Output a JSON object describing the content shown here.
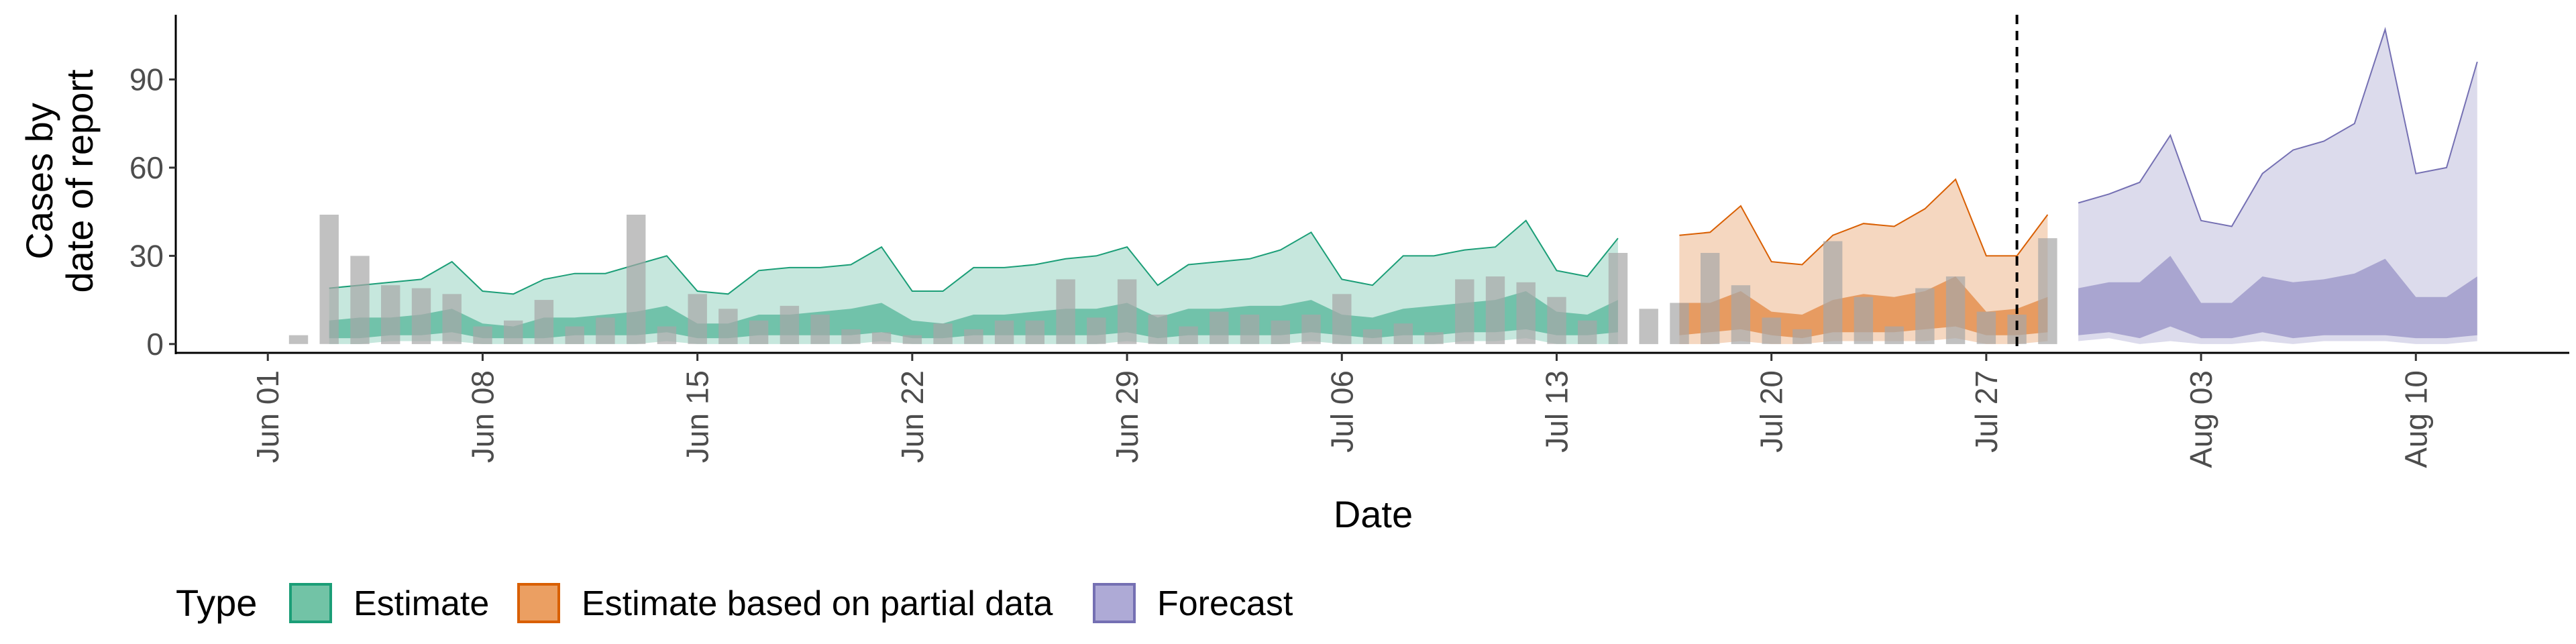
{
  "chart_data": {
    "type": "area",
    "xlabel": "Date",
    "ylabel_lines": [
      "Cases by",
      "date of report"
    ],
    "x_start": "2020-05-29",
    "x_end": "2020-08-15",
    "ylim": [
      -3,
      112
    ],
    "y_ticks": [
      0,
      30,
      60,
      90
    ],
    "x_ticks": [
      {
        "date": "2020-06-01",
        "label": "Jun 01"
      },
      {
        "date": "2020-06-08",
        "label": "Jun 08"
      },
      {
        "date": "2020-06-15",
        "label": "Jun 15"
      },
      {
        "date": "2020-06-22",
        "label": "Jun 22"
      },
      {
        "date": "2020-06-29",
        "label": "Jun 29"
      },
      {
        "date": "2020-07-06",
        "label": "Jul 06"
      },
      {
        "date": "2020-07-13",
        "label": "Jul 13"
      },
      {
        "date": "2020-07-20",
        "label": "Jul 20"
      },
      {
        "date": "2020-07-27",
        "label": "Jul 27"
      },
      {
        "date": "2020-08-03",
        "label": "Aug 03"
      },
      {
        "date": "2020-08-10",
        "label": "Aug 10"
      }
    ],
    "vline_date": "2020-07-28",
    "grid": false,
    "legend": {
      "position": "bottom",
      "title": "Type"
    },
    "colors": {
      "Estimate": "#1b9e77",
      "Estimate based on partial data": "#d95f02",
      "Forecast": "#7570b3",
      "bars": "#a6a6a6"
    },
    "bars": [
      {
        "date": "2020-06-02",
        "value": 3
      },
      {
        "date": "2020-06-03",
        "value": 44
      },
      {
        "date": "2020-06-04",
        "value": 30
      },
      {
        "date": "2020-06-05",
        "value": 20
      },
      {
        "date": "2020-06-06",
        "value": 19
      },
      {
        "date": "2020-06-07",
        "value": 17
      },
      {
        "date": "2020-06-08",
        "value": 6
      },
      {
        "date": "2020-06-09",
        "value": 8
      },
      {
        "date": "2020-06-10",
        "value": 15
      },
      {
        "date": "2020-06-11",
        "value": 6
      },
      {
        "date": "2020-06-12",
        "value": 9
      },
      {
        "date": "2020-06-13",
        "value": 44
      },
      {
        "date": "2020-06-14",
        "value": 6
      },
      {
        "date": "2020-06-15",
        "value": 17
      },
      {
        "date": "2020-06-16",
        "value": 12
      },
      {
        "date": "2020-06-17",
        "value": 8
      },
      {
        "date": "2020-06-18",
        "value": 13
      },
      {
        "date": "2020-06-19",
        "value": 10
      },
      {
        "date": "2020-06-20",
        "value": 5
      },
      {
        "date": "2020-06-21",
        "value": 4
      },
      {
        "date": "2020-06-22",
        "value": 3
      },
      {
        "date": "2020-06-23",
        "value": 7
      },
      {
        "date": "2020-06-24",
        "value": 5
      },
      {
        "date": "2020-06-25",
        "value": 8
      },
      {
        "date": "2020-06-26",
        "value": 8
      },
      {
        "date": "2020-06-27",
        "value": 22
      },
      {
        "date": "2020-06-28",
        "value": 9
      },
      {
        "date": "2020-06-29",
        "value": 22
      },
      {
        "date": "2020-06-30",
        "value": 10
      },
      {
        "date": "2020-07-01",
        "value": 6
      },
      {
        "date": "2020-07-02",
        "value": 11
      },
      {
        "date": "2020-07-03",
        "value": 10
      },
      {
        "date": "2020-07-04",
        "value": 8
      },
      {
        "date": "2020-07-05",
        "value": 10
      },
      {
        "date": "2020-07-06",
        "value": 17
      },
      {
        "date": "2020-07-07",
        "value": 5
      },
      {
        "date": "2020-07-08",
        "value": 7
      },
      {
        "date": "2020-07-09",
        "value": 4
      },
      {
        "date": "2020-07-10",
        "value": 22
      },
      {
        "date": "2020-07-11",
        "value": 23
      },
      {
        "date": "2020-07-12",
        "value": 21
      },
      {
        "date": "2020-07-13",
        "value": 16
      },
      {
        "date": "2020-07-14",
        "value": 8
      },
      {
        "date": "2020-07-15",
        "value": 31
      },
      {
        "date": "2020-07-16",
        "value": 12
      },
      {
        "date": "2020-07-17",
        "value": 14
      },
      {
        "date": "2020-07-18",
        "value": 31
      },
      {
        "date": "2020-07-19",
        "value": 20
      },
      {
        "date": "2020-07-20",
        "value": 9
      },
      {
        "date": "2020-07-21",
        "value": 5
      },
      {
        "date": "2020-07-22",
        "value": 35
      },
      {
        "date": "2020-07-23",
        "value": 16
      },
      {
        "date": "2020-07-24",
        "value": 6
      },
      {
        "date": "2020-07-25",
        "value": 19
      },
      {
        "date": "2020-07-26",
        "value": 23
      },
      {
        "date": "2020-07-27",
        "value": 11
      },
      {
        "date": "2020-07-28",
        "value": 10
      },
      {
        "date": "2020-07-29",
        "value": 36
      }
    ],
    "series": [
      {
        "name": "Estimate",
        "start_date": "2020-06-03",
        "upper90": [
          19,
          20,
          21,
          22,
          28,
          18,
          17,
          22,
          24,
          24,
          27,
          30,
          18,
          17,
          25,
          26,
          26,
          27,
          33,
          18,
          18,
          26,
          26,
          27,
          29,
          30,
          33,
          20,
          27,
          28,
          29,
          32,
          38,
          22,
          20,
          30,
          30,
          32,
          33,
          42,
          25,
          23,
          36
        ],
        "lower90": [
          0,
          0,
          1,
          1,
          1,
          0,
          0,
          0,
          0,
          0,
          0,
          1,
          0,
          0,
          0,
          0,
          0,
          0,
          1,
          0,
          0,
          0,
          0,
          0,
          0,
          0,
          1,
          0,
          0,
          0,
          0,
          0,
          1,
          0,
          0,
          0,
          0,
          1,
          1,
          2,
          0,
          0,
          0
        ],
        "upper50": [
          8,
          9,
          9,
          10,
          12,
          7,
          6,
          9,
          9,
          10,
          11,
          13,
          7,
          7,
          10,
          10,
          11,
          12,
          14,
          8,
          7,
          10,
          10,
          11,
          12,
          12,
          14,
          9,
          12,
          12,
          13,
          13,
          15,
          10,
          9,
          12,
          13,
          14,
          15,
          18,
          11,
          10,
          15
        ],
        "lower50": [
          2,
          2,
          3,
          3,
          4,
          2,
          2,
          2,
          3,
          3,
          3,
          4,
          2,
          2,
          3,
          3,
          3,
          3,
          4,
          2,
          2,
          3,
          3,
          3,
          3,
          3,
          4,
          2,
          3,
          3,
          3,
          3,
          4,
          3,
          2,
          3,
          3,
          4,
          4,
          5,
          3,
          3,
          4
        ]
      },
      {
        "name": "Estimate based on partial data",
        "start_date": "2020-07-17",
        "upper90": [
          37,
          38,
          47,
          28,
          27,
          37,
          41,
          40,
          46,
          56,
          30,
          30,
          44
        ],
        "lower90": [
          0,
          0,
          1,
          0,
          0,
          1,
          1,
          1,
          1,
          2,
          0,
          0,
          1
        ],
        "upper50": [
          14,
          14,
          18,
          11,
          10,
          15,
          17,
          16,
          18,
          23,
          11,
          12,
          16
        ],
        "lower50": [
          3,
          4,
          5,
          3,
          2,
          4,
          4,
          4,
          5,
          6,
          3,
          3,
          4
        ]
      },
      {
        "name": "Forecast",
        "start_date": "2020-07-30",
        "upper90": [
          48,
          51,
          55,
          71,
          42,
          40,
          58,
          66,
          69,
          75,
          107,
          58,
          60,
          96
        ],
        "lower90": [
          1,
          2,
          0,
          1,
          0,
          0,
          1,
          0,
          1,
          1,
          1,
          0,
          0,
          1
        ],
        "upper50": [
          19,
          21,
          21,
          30,
          14,
          14,
          23,
          21,
          22,
          24,
          29,
          16,
          16,
          23
        ],
        "lower50": [
          3,
          4,
          2,
          6,
          2,
          2,
          4,
          2,
          3,
          3,
          3,
          2,
          2,
          3
        ]
      }
    ]
  },
  "legend_items": [
    {
      "label": "Estimate",
      "fill": "#72c3a6",
      "stroke": "#1b9e77"
    },
    {
      "label": "Estimate based on partial data",
      "fill": "#eb9f62",
      "stroke": "#d95f02"
    },
    {
      "label": "Forecast",
      "fill": "#aeaad6",
      "stroke": "#7570b3"
    }
  ]
}
